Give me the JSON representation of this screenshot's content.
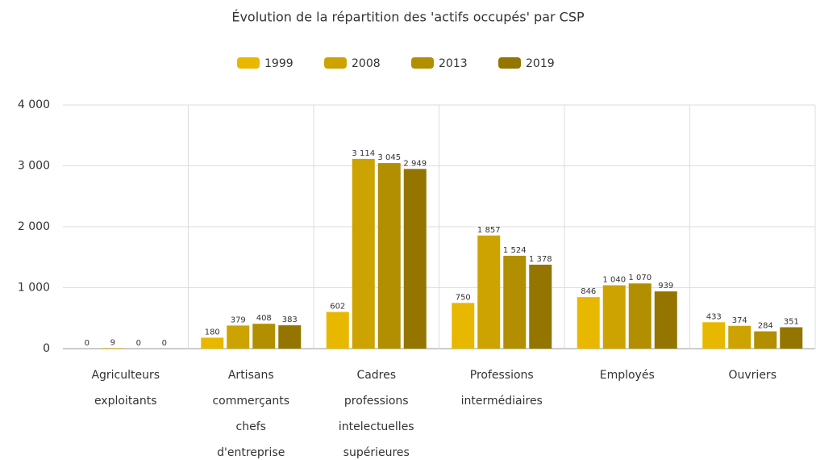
{
  "chart_data": {
    "type": "bar",
    "title": "Évolution de la répartition des 'actifs occupés' par CSP",
    "categories": [
      [
        "Agriculteurs",
        "exploitants"
      ],
      [
        "Artisans",
        "commerçants",
        "chefs",
        "d'entreprise"
      ],
      [
        "Cadres",
        "professions",
        "intelectuelles",
        "supérieures"
      ],
      [
        "Professions",
        "intermédiaires"
      ],
      [
        "Employés"
      ],
      [
        "Ouvriers"
      ]
    ],
    "series": [
      {
        "name": "1999",
        "color": "#e8b800",
        "values": [
          0,
          180,
          602,
          750,
          846,
          433
        ],
        "value_labels": [
          "0",
          "180",
          "602",
          "750",
          "846",
          "433"
        ]
      },
      {
        "name": "2008",
        "color": "#cca300",
        "values": [
          9,
          379,
          3114,
          1857,
          1040,
          374
        ],
        "value_labels": [
          "9",
          "379",
          "3 114",
          "1 857",
          "1 040",
          "374"
        ]
      },
      {
        "name": "2013",
        "color": "#b18f00",
        "values": [
          0,
          408,
          3045,
          1524,
          1070,
          284
        ],
        "value_labels": [
          "0",
          "408",
          "3 045",
          "1 524",
          "1 070",
          "284"
        ]
      },
      {
        "name": "2019",
        "color": "#937500",
        "values": [
          0,
          383,
          2949,
          1378,
          939,
          351
        ],
        "value_labels": [
          "0",
          "383",
          "2 949",
          "1 378",
          "939",
          "351"
        ]
      }
    ],
    "ylim": [
      0,
      4000
    ],
    "yticks": [
      0,
      {
        "value": 1000,
        "label": "1 000"
      },
      {
        "value": 2000,
        "label": "2 000"
      },
      {
        "value": 3000,
        "label": "3 000"
      },
      {
        "value": 4000,
        "label": "4 000"
      }
    ],
    "grid": true,
    "legend": "top"
  }
}
